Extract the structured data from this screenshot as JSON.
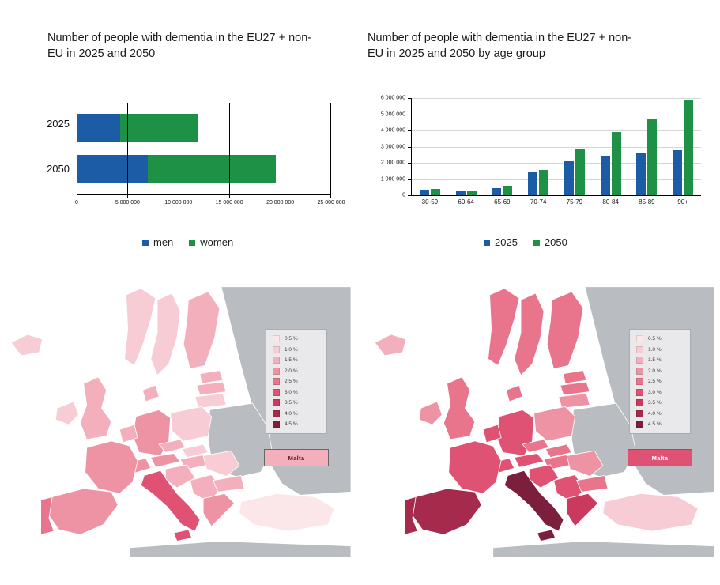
{
  "colors": {
    "blue": "#1c5ba6",
    "green": "#1f9147",
    "map_grey": "#b9bcc1",
    "legend_box_bg": "#e9e9ec",
    "title_text": "#1b1b1b"
  },
  "chart_data": [
    {
      "type": "bar",
      "orientation": "horizontal",
      "stacked": true,
      "title": "Number of people with dementia in the EU27 + non-EU in 2025 and 2050",
      "categories": [
        "2025",
        "2050"
      ],
      "series": [
        {
          "name": "men",
          "color": "#1c5ba6",
          "values": [
            4200000,
            6900000
          ]
        },
        {
          "name": "women",
          "color": "#1f9147",
          "values": [
            7600000,
            12600000
          ]
        }
      ],
      "xlim": [
        0,
        25000000
      ],
      "xticks": [
        "0",
        "5 000 000",
        "10 000 000",
        "15 000 000",
        "20 000 000",
        "25 000 000"
      ],
      "legend_position": "bottom"
    },
    {
      "type": "bar",
      "orientation": "vertical",
      "stacked": false,
      "title": "Number of people with dementia in the EU27 + non-EU in 2025 and 2050 by age group",
      "categories": [
        "30-59",
        "60-64",
        "65-69",
        "70-74",
        "75-79",
        "80-84",
        "85-89",
        "90+"
      ],
      "series": [
        {
          "name": "2025",
          "color": "#1c5ba6",
          "values": [
            350000,
            250000,
            450000,
            1400000,
            2100000,
            2450000,
            2650000,
            2800000
          ]
        },
        {
          "name": "2050",
          "color": "#1f9147",
          "values": [
            400000,
            300000,
            600000,
            1550000,
            2850000,
            3900000,
            4750000,
            5900000
          ]
        }
      ],
      "ylim": [
        0,
        6000000
      ],
      "yticks": [
        "0",
        "1 000 000",
        "2 000 000",
        "3 000 000",
        "4 000 000",
        "5 000 000",
        "6 000 000"
      ],
      "legend_position": "bottom"
    },
    {
      "type": "choropleth",
      "region": "Europe",
      "legend_labels": [
        "0.5 %",
        "1.0 %",
        "1.5 %",
        "2.0 %",
        "2.5 %",
        "3.0 %",
        "3.5 %",
        "4.0 %",
        "4.5 %"
      ],
      "palette": [
        "#fbe6ea",
        "#f8ccd4",
        "#f3b0bc",
        "#ee93a4",
        "#e8758c",
        "#e05273",
        "#c93a5e",
        "#a62a4c",
        "#7c1f3d"
      ],
      "inset": {
        "label": "Malta",
        "level": 3
      },
      "country_levels": {
        "iceland": 2,
        "norway": 2,
        "sweden": 2,
        "finland": 3,
        "denmark": 3,
        "estonia": 3,
        "latvia": 3,
        "lithuania": 2,
        "ireland": 2,
        "uk": 3,
        "benelux": 3,
        "germany": 4,
        "poland": 2,
        "czech": 3,
        "slovakia": 2,
        "austria": 4,
        "switzerland": 4,
        "france": 4,
        "hungary": 3,
        "slovenia_croatia": 3,
        "balkans": 3,
        "romania": 2,
        "bulgaria": 3,
        "greece": 4,
        "italy": 6,
        "sicily": 6,
        "spain": 4,
        "portugal": 5,
        "turkey": 1
      }
    },
    {
      "type": "choropleth",
      "region": "Europe",
      "legend_labels": [
        "0.5 %",
        "1.0 %",
        "1.5 %",
        "2.0 %",
        "2.5 %",
        "3.0 %",
        "3.5 %",
        "4.0 %",
        "4.5 %"
      ],
      "palette": [
        "#fbe6ea",
        "#f8ccd4",
        "#f3b0bc",
        "#ee93a4",
        "#e8758c",
        "#e05273",
        "#c93a5e",
        "#a62a4c",
        "#7c1f3d"
      ],
      "inset": {
        "label": "Malta",
        "level": 6
      },
      "country_levels": {
        "iceland": 3,
        "norway": 5,
        "sweden": 5,
        "finland": 5,
        "denmark": 5,
        "estonia": 5,
        "latvia": 5,
        "lithuania": 4,
        "ireland": 4,
        "uk": 5,
        "benelux": 6,
        "germany": 6,
        "poland": 4,
        "czech": 5,
        "slovakia": 5,
        "austria": 6,
        "switzerland": 6,
        "france": 6,
        "hungary": 5,
        "slovenia_croatia": 6,
        "balkans": 6,
        "romania": 4,
        "bulgaria": 5,
        "greece": 7,
        "italy": 9,
        "sicily": 9,
        "spain": 8,
        "portugal": 8,
        "turkey": 2
      }
    }
  ]
}
